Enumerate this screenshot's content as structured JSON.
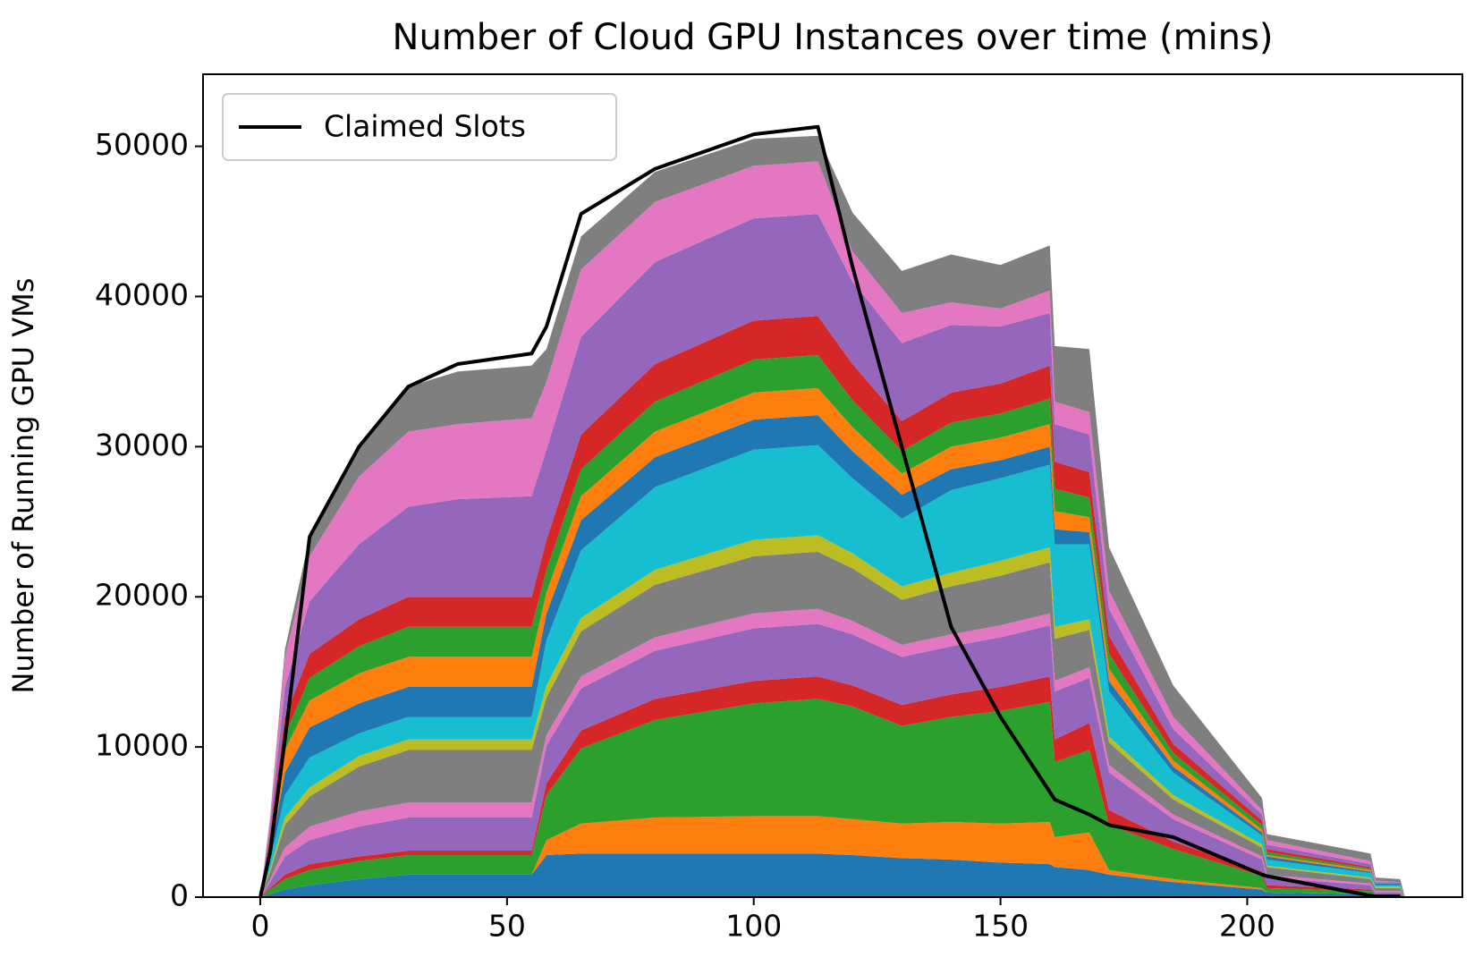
{
  "chart_data": {
    "type": "stacked_area",
    "title": "Number of Cloud GPU Instances over time (mins)",
    "y_label": "Number of Running GPU VMs",
    "x": [
      0,
      2,
      5,
      10,
      20,
      30,
      40,
      55,
      58,
      65,
      80,
      100,
      113,
      120,
      130,
      140,
      150,
      160,
      161,
      168,
      172,
      185,
      203,
      204,
      225,
      226,
      231,
      232
    ],
    "xlim": [
      -11.6,
      243.6
    ],
    "xticks": [
      0,
      50,
      100,
      150,
      200
    ],
    "ylim": [
      0,
      54800
    ],
    "yticks": [
      0,
      10000,
      20000,
      30000,
      40000,
      50000
    ],
    "legend": "upper left",
    "series": [
      {
        "color": "#1f77b4",
        "values": [
          0,
          200,
          500,
          800,
          1200,
          1500,
          1500,
          1500,
          2800,
          2900,
          2900,
          2900,
          2900,
          2800,
          2600,
          2500,
          2300,
          2200,
          2000,
          1800,
          1500,
          1000,
          500,
          300,
          200,
          100,
          100,
          0
        ]
      },
      {
        "color": "#ff7f0e",
        "values": [
          0,
          0,
          0,
          0,
          0,
          0,
          0,
          0,
          1000,
          2000,
          2400,
          2500,
          2500,
          2400,
          2300,
          2500,
          2600,
          2800,
          2000,
          2500,
          300,
          200,
          100,
          0,
          0,
          0,
          0,
          0
        ]
      },
      {
        "color": "#2ca02c",
        "values": [
          0,
          300,
          700,
          1000,
          1200,
          1300,
          1300,
          1300,
          3000,
          5000,
          6500,
          7500,
          7800,
          7500,
          6500,
          7000,
          7500,
          8000,
          5000,
          5500,
          3000,
          2000,
          800,
          300,
          200,
          100,
          100,
          0
        ]
      },
      {
        "color": "#d62728",
        "values": [
          0,
          100,
          300,
          400,
          300,
          300,
          300,
          300,
          800,
          1200,
          1400,
          1500,
          1500,
          1400,
          1400,
          1500,
          1600,
          1700,
          1500,
          1800,
          1000,
          500,
          300,
          200,
          100,
          0,
          0,
          0
        ]
      },
      {
        "color": "#9467bd",
        "values": [
          0,
          400,
          1200,
          1600,
          2000,
          2200,
          2200,
          2200,
          2500,
          2800,
          3200,
          3500,
          3500,
          3400,
          3200,
          3200,
          3300,
          3400,
          3200,
          3000,
          2500,
          1500,
          800,
          500,
          300,
          100,
          100,
          0
        ]
      },
      {
        "color": "#e377c2",
        "values": [
          0,
          200,
          600,
          900,
          1000,
          1000,
          1000,
          1000,
          700,
          800,
          900,
          1000,
          1000,
          900,
          800,
          800,
          800,
          800,
          700,
          700,
          500,
          300,
          200,
          200,
          100,
          100,
          100,
          0
        ]
      },
      {
        "color": "#7f7f7f",
        "values": [
          0,
          500,
          1500,
          2000,
          3000,
          3500,
          3500,
          3500,
          2500,
          3000,
          3500,
          3800,
          3800,
          3500,
          3000,
          3200,
          3300,
          3400,
          2800,
          2500,
          1500,
          1000,
          600,
          500,
          300,
          200,
          200,
          0
        ]
      },
      {
        "color": "#bcbd22",
        "values": [
          0,
          200,
          500,
          600,
          700,
          700,
          700,
          700,
          800,
          900,
          1000,
          1100,
          1100,
          1000,
          900,
          900,
          1000,
          1000,
          800,
          700,
          400,
          300,
          200,
          100,
          100,
          100,
          100,
          0
        ]
      },
      {
        "color": "#17becf",
        "values": [
          0,
          500,
          1500,
          2000,
          1500,
          1500,
          1500,
          1500,
          3000,
          4500,
          5500,
          6000,
          6000,
          5000,
          4500,
          5500,
          5500,
          5500,
          5500,
          5000,
          3000,
          1500,
          600,
          400,
          300,
          100,
          100,
          0
        ]
      },
      {
        "color": "#1f77b4",
        "values": [
          0,
          500,
          1500,
          2000,
          2000,
          2000,
          2000,
          2000,
          1800,
          2000,
          2000,
          2000,
          2000,
          1800,
          1600,
          1400,
          1200,
          1200,
          1000,
          800,
          700,
          400,
          200,
          200,
          100,
          100,
          100,
          0
        ]
      },
      {
        "color": "#ff7f0e",
        "values": [
          0,
          500,
          1500,
          1800,
          2000,
          2000,
          2000,
          2000,
          1400,
          1600,
          1700,
          1800,
          1800,
          1600,
          1400,
          1500,
          1500,
          1500,
          1200,
          1000,
          800,
          400,
          200,
          100,
          100,
          0,
          0,
          0
        ]
      },
      {
        "color": "#2ca02c",
        "values": [
          0,
          400,
          1000,
          1500,
          1800,
          2000,
          2000,
          2000,
          1500,
          1800,
          2000,
          2200,
          2200,
          1800,
          1500,
          1600,
          1600,
          1700,
          1500,
          1300,
          1000,
          500,
          300,
          200,
          100,
          0,
          0,
          0
        ]
      },
      {
        "color": "#d62728",
        "values": [
          0,
          400,
          1200,
          1600,
          1800,
          2000,
          2000,
          2000,
          2000,
          2300,
          2500,
          2600,
          2600,
          2400,
          2000,
          2000,
          2000,
          2200,
          1800,
          1700,
          1200,
          600,
          300,
          200,
          100,
          0,
          0,
          0
        ]
      },
      {
        "color": "#9467bd",
        "values": [
          0,
          600,
          2000,
          3500,
          5000,
          6000,
          6500,
          6700,
          6000,
          6500,
          6800,
          6800,
          6800,
          5500,
          5200,
          4500,
          3800,
          3500,
          2500,
          2500,
          1800,
          1000,
          400,
          300,
          200,
          100,
          100,
          0
        ]
      },
      {
        "color": "#e377c2",
        "values": [
          0,
          500,
          2000,
          3000,
          4500,
          5000,
          5000,
          5200,
          4500,
          4500,
          4000,
          3500,
          3500,
          2000,
          2000,
          1500,
          1200,
          1500,
          1500,
          1500,
          1200,
          800,
          300,
          300,
          200,
          100,
          0,
          0
        ]
      },
      {
        "color": "#7f7f7f",
        "values": [
          0,
          100,
          500,
          1300,
          2000,
          3000,
          3500,
          3500,
          2200,
          2200,
          2000,
          1800,
          1700,
          2600,
          2800,
          3200,
          2900,
          3000,
          3700,
          4200,
          2900,
          2100,
          800,
          400,
          500,
          200,
          200,
          0
        ]
      }
    ],
    "line_series": {
      "name": "Claimed Slots",
      "color": "#000000",
      "values": [
        0,
        3000,
        10500,
        24000,
        30000,
        34000,
        35500,
        36200,
        38000,
        45500,
        48500,
        50800,
        51300,
        42000,
        30000,
        18000,
        12000,
        7000,
        6500,
        5500,
        4800,
        4000,
        1500,
        1400,
        100,
        50,
        50,
        null
      ]
    }
  }
}
